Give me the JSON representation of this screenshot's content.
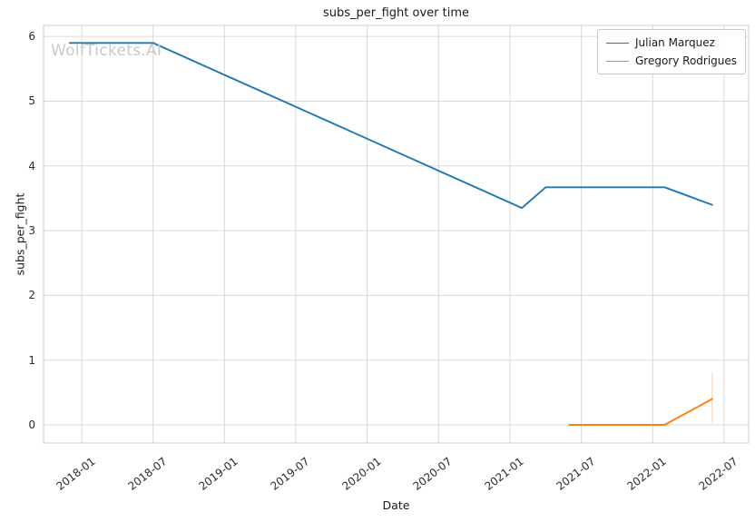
{
  "figure": {
    "watermark": "WolfTickets.AI"
  },
  "colors": {
    "series_blue": "#1f77b4",
    "series_orange": "#ff7f0e",
    "grid": "#d9d9d9",
    "spine": "#cccccc",
    "watermark": "#c9c9c9",
    "text": "#1a1a1a",
    "background": "#ffffff"
  },
  "chart_data": {
    "type": "line",
    "title": "subs_per_fight over time",
    "xlabel": "Date",
    "ylabel": "subs_per_fight",
    "grid": true,
    "legend_position": "upper right",
    "x_tick_labels": [
      "2018-01",
      "2018-07",
      "2019-01",
      "2019-07",
      "2020-01",
      "2020-07",
      "2021-01",
      "2021-07",
      "2022-01",
      "2022-07"
    ],
    "y_ticks": [
      0,
      1,
      2,
      3,
      4,
      5,
      6
    ],
    "xlim": [
      2017.733,
      2022.672
    ],
    "ylim": [
      -0.28,
      6.17
    ],
    "series": [
      {
        "name": "Julian Marquez",
        "color": "#1f77b4",
        "dates": [
          "2017-12",
          "2018-07",
          "2021-02",
          "2021-04",
          "2022-02",
          "2022-06"
        ],
        "values": [
          5.9,
          5.9,
          3.35,
          3.67,
          3.67,
          3.4
        ]
      },
      {
        "name": "Gregory Rodrigues",
        "color": "#ff7f0e",
        "dates": [
          "2021-06",
          "2022-02",
          "2022-06"
        ],
        "values": [
          0.0,
          0.0,
          0.4
        ]
      }
    ],
    "annotations": [
      {
        "type": "vline",
        "date": "2022-06",
        "y_min": 0.02,
        "y_max": 0.82,
        "color": "#ff7f0e",
        "opacity": 0.3
      }
    ]
  }
}
